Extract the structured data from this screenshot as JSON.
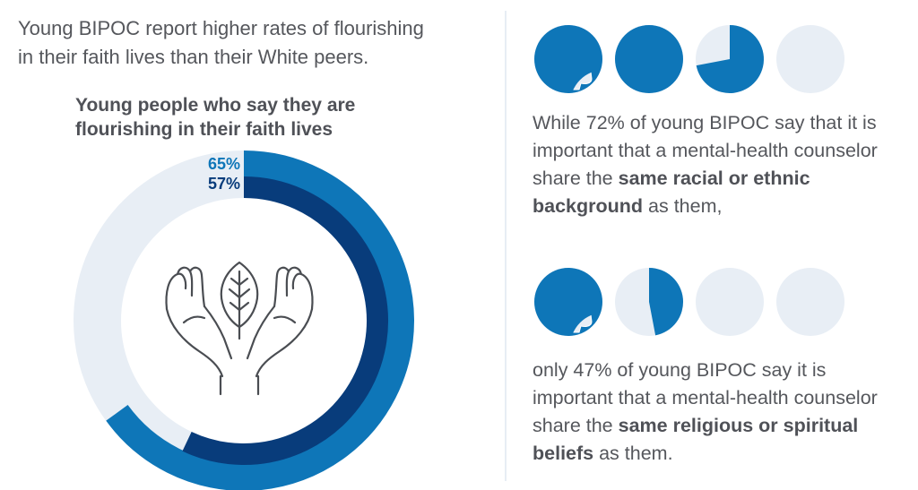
{
  "headline": {
    "line1": "Young BIPOC report higher rates of flourishing",
    "line2": "in their faith lives than their White peers."
  },
  "chart_data": {
    "type": "donut",
    "title_line1": "Young people who say they are",
    "title_line2": "flourishing in their faith lives",
    "series": [
      {
        "value": 65,
        "label": "65%",
        "color": "#0e76b8"
      },
      {
        "value": 57,
        "label": "57%",
        "color": "#083c7b"
      }
    ],
    "track_color": "#e8eef5",
    "center_icon": "hands-holding-leaf-icon"
  },
  "stat1": {
    "heads": [
      1,
      1,
      0.72,
      0
    ],
    "before": "While 72% of young BIPOC say that it is important that a mental-health counselor share the ",
    "bold": "same racial or ethnic background",
    "after": " as them,"
  },
  "stat2": {
    "heads": [
      1,
      0.47,
      0,
      0
    ],
    "before": "only 47% of young BIPOC say it is important that a mental-health counselor share the ",
    "bold": "same religious or spiritual beliefs",
    "after": " as them."
  },
  "colors": {
    "head_fill": "#0e76b8",
    "head_empty": "#e8eef5",
    "text": "#55575c"
  }
}
